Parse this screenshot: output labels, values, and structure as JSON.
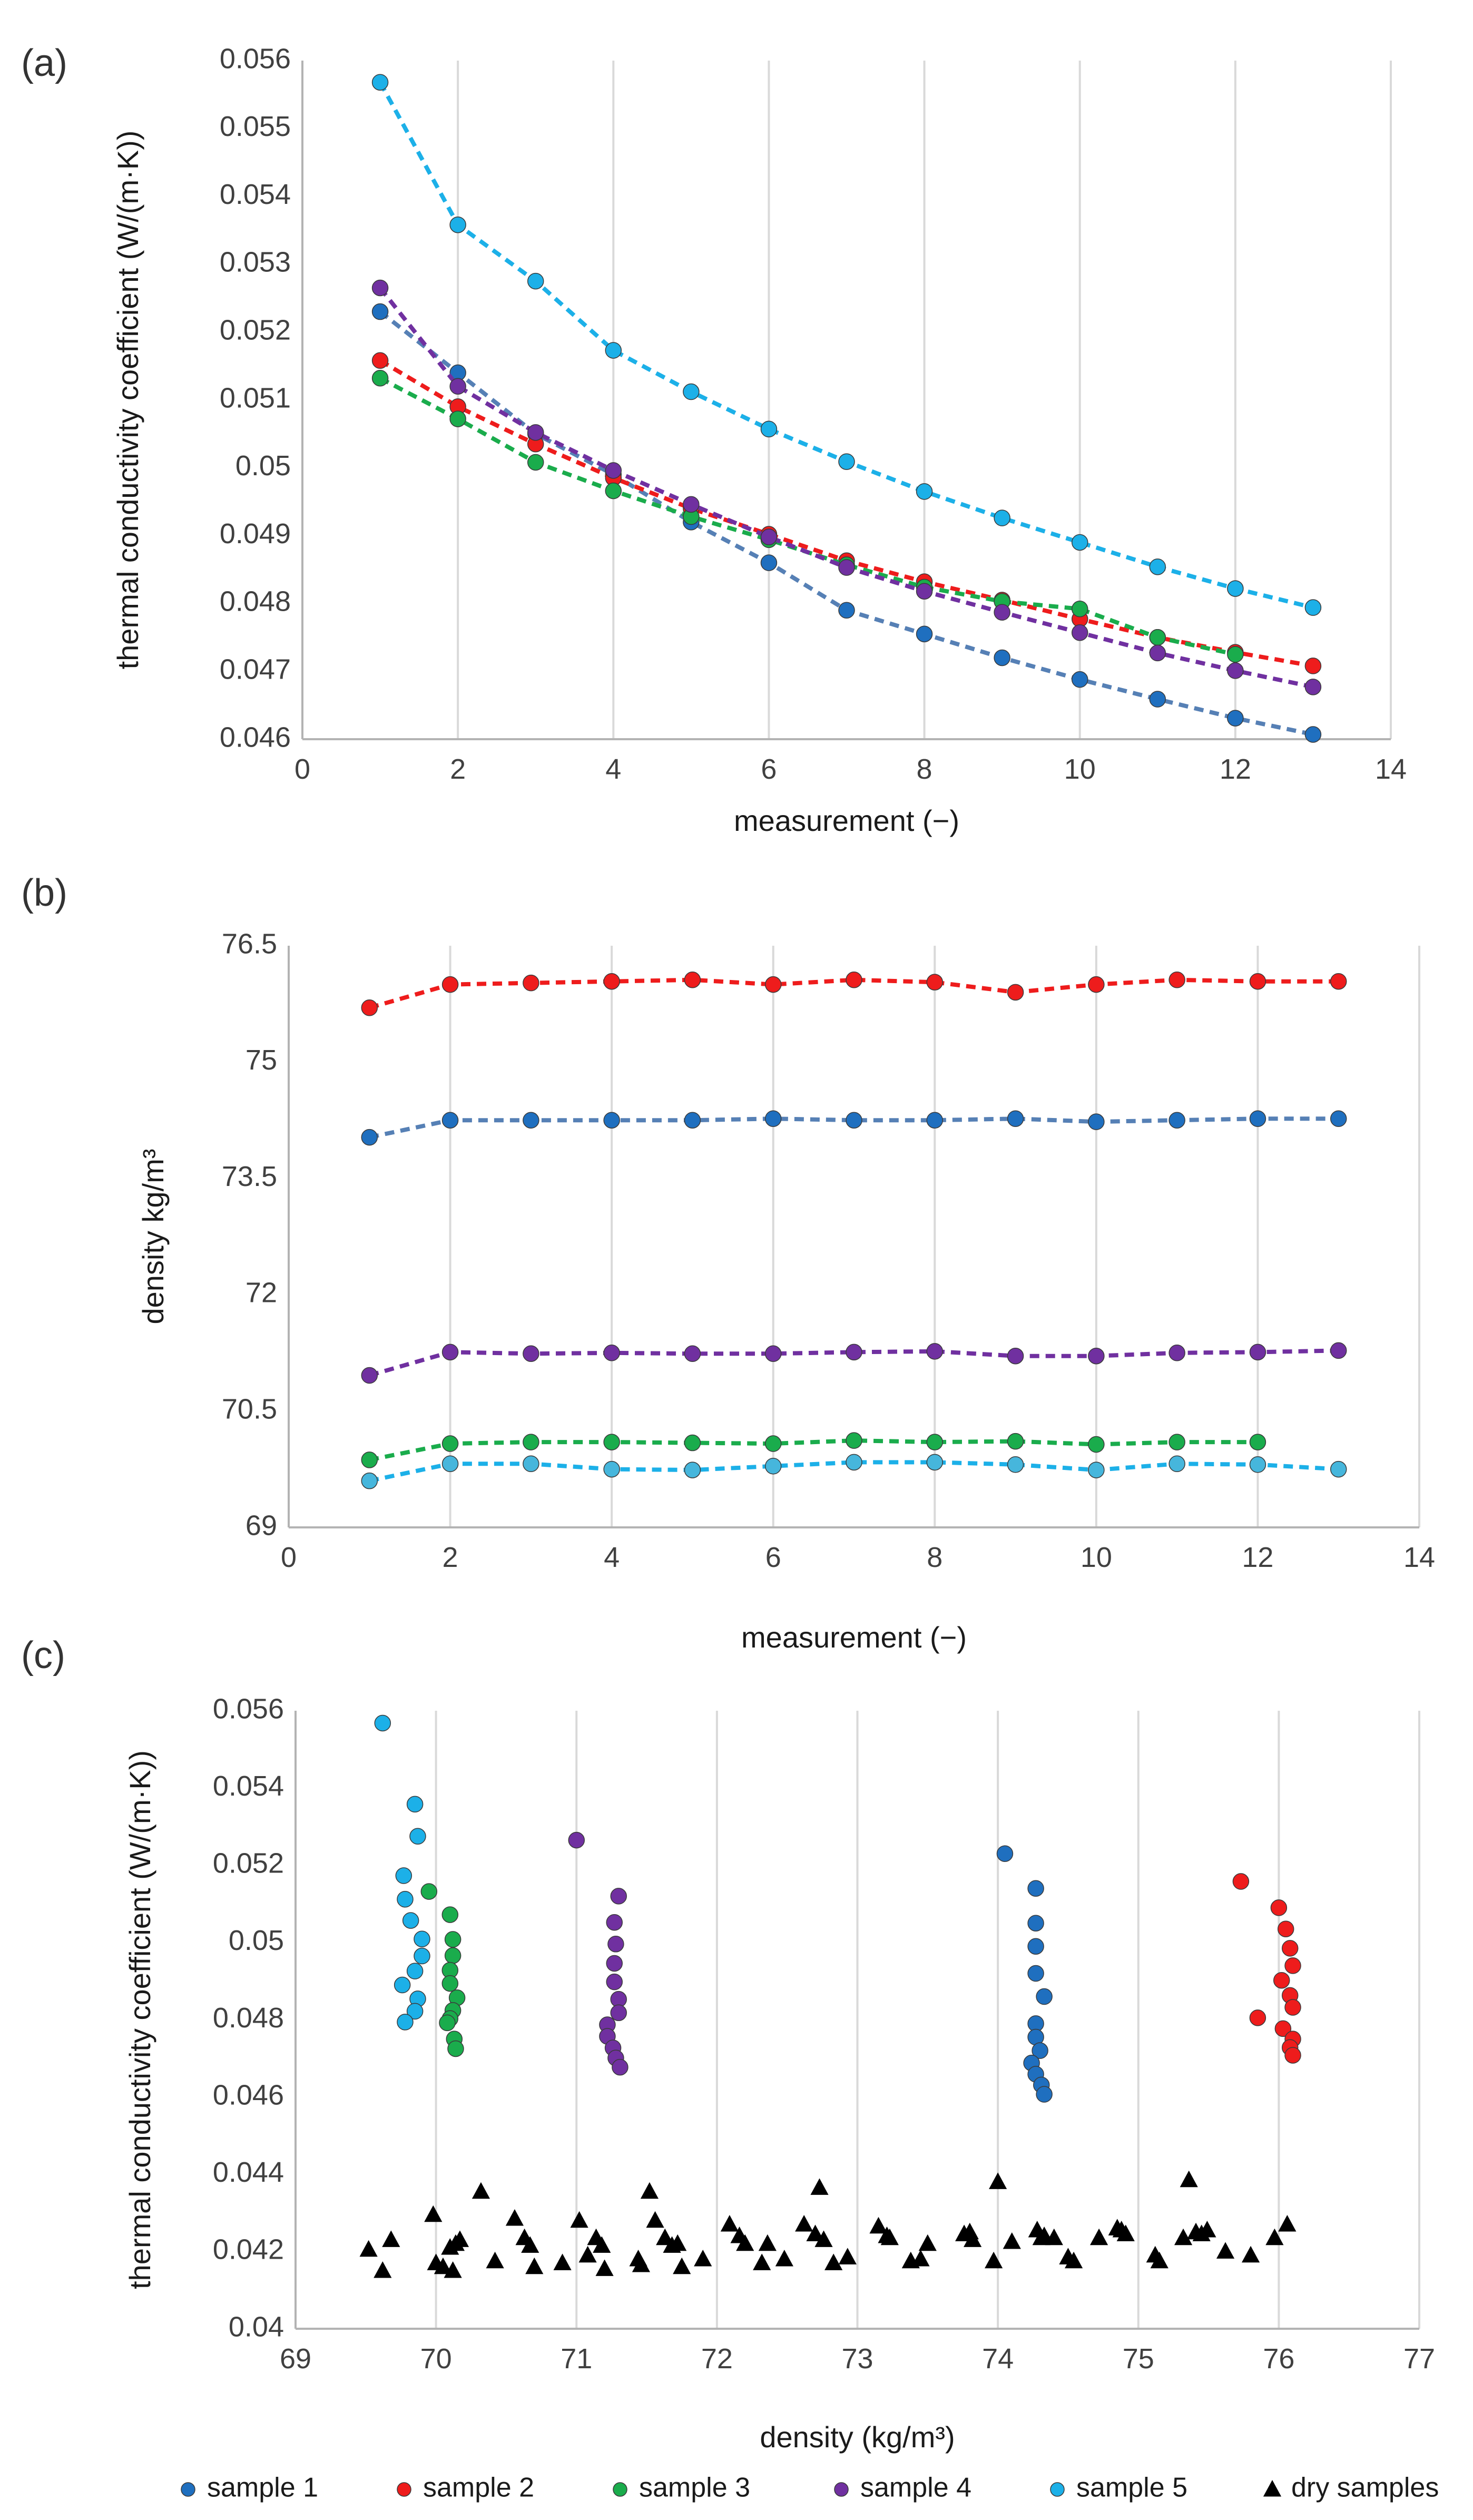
{
  "colors": {
    "sample1": "#1f6fbf",
    "sample2": "#ee1c1c",
    "sample3": "#1aac4c",
    "sample4": "#7030a0",
    "sample5": "#1cb0e8",
    "sample1_line": "#5680b5",
    "sample5_density_marker": "#46b6dc",
    "dry": "#000000",
    "grid": "#d9d9d9",
    "axis": "#b3b3b3"
  },
  "chart_data": [
    {
      "id": "a",
      "panel_label": "(a)",
      "type": "line",
      "xlabel": "measurement (−)",
      "ylabel": "thermal conductivity coefficient (W/(m·K))",
      "xlim": [
        0,
        14
      ],
      "ylim": [
        0.046,
        0.056
      ],
      "xticks": [
        "0",
        "2",
        "4",
        "6",
        "8",
        "10",
        "12",
        "14"
      ],
      "yticks": [
        "0.046",
        "0.047",
        "0.048",
        "0.049",
        "0.05",
        "0.051",
        "0.052",
        "0.053",
        "0.054",
        "0.055",
        "0.056"
      ],
      "grid": "vertical",
      "x": [
        1,
        2,
        3,
        4,
        5,
        6,
        7,
        8,
        9,
        10,
        11,
        12,
        13
      ],
      "series": [
        {
          "name": "sample 1",
          "values": [
            0.0523,
            0.0514,
            0.0505,
            0.0499,
            0.0492,
            0.0486,
            0.0479,
            0.04755,
            0.0472,
            0.04688,
            0.04659,
            0.04631,
            0.04607
          ]
        },
        {
          "name": "sample 2",
          "values": [
            0.05158,
            0.0509,
            0.05035,
            0.04985,
            0.0494,
            0.04902,
            0.04863,
            0.04832,
            0.04805,
            0.04777,
            0.0475,
            0.04728,
            0.04708
          ]
        },
        {
          "name": "sample 3",
          "values": [
            0.05132,
            0.05072,
            0.05008,
            0.04966,
            0.04928,
            0.04894,
            0.04857,
            0.04824,
            0.04803,
            0.04792,
            0.0475,
            0.04725,
            null
          ]
        },
        {
          "name": "sample 4",
          "values": [
            0.05265,
            0.0512,
            0.05052,
            0.04996,
            0.04946,
            0.04898,
            0.04853,
            0.04818,
            0.04787,
            0.04757,
            0.04727,
            0.04701,
            0.04677
          ]
        },
        {
          "name": "sample 5",
          "values": [
            0.05568,
            0.05358,
            0.05275,
            0.05173,
            0.05112,
            0.05057,
            0.05009,
            0.04965,
            0.04926,
            0.0489,
            0.04854,
            0.04822,
            0.04794
          ]
        }
      ]
    },
    {
      "id": "b",
      "panel_label": "(b)",
      "type": "line",
      "xlabel": "measurement (−)",
      "ylabel": "density kg/m³",
      "xlim": [
        0,
        14
      ],
      "ylim": [
        69,
        76.5
      ],
      "xticks": [
        "0",
        "2",
        "4",
        "6",
        "8",
        "10",
        "12",
        "14"
      ],
      "yticks": [
        "69",
        "70.5",
        "72",
        "73.5",
        "75",
        "76.5"
      ],
      "grid": "vertical",
      "x": [
        1,
        2,
        3,
        4,
        5,
        6,
        7,
        8,
        9,
        10,
        11,
        12,
        13
      ],
      "series": [
        {
          "name": "sample 1",
          "values": [
            74.03,
            74.25,
            74.25,
            74.25,
            74.25,
            74.27,
            74.25,
            74.25,
            74.27,
            74.23,
            74.25,
            74.27,
            74.27
          ]
        },
        {
          "name": "sample 2",
          "values": [
            75.7,
            76.0,
            76.02,
            76.04,
            76.06,
            76.0,
            76.06,
            76.03,
            75.9,
            76.0,
            76.06,
            76.04,
            76.04
          ]
        },
        {
          "name": "sample 3",
          "values": [
            69.87,
            70.08,
            70.1,
            70.1,
            70.09,
            70.08,
            70.12,
            70.1,
            70.11,
            70.07,
            70.1,
            70.1,
            null
          ]
        },
        {
          "name": "sample 4",
          "values": [
            70.96,
            71.26,
            71.24,
            71.25,
            71.24,
            71.24,
            71.26,
            71.27,
            71.21,
            71.21,
            71.25,
            71.26,
            71.28
          ]
        },
        {
          "name": "sample 5",
          "values": [
            69.6,
            69.82,
            69.82,
            69.75,
            69.74,
            69.79,
            69.84,
            69.84,
            69.81,
            69.74,
            69.82,
            69.81,
            69.75
          ]
        }
      ]
    },
    {
      "id": "c",
      "panel_label": "(c)",
      "type": "scatter",
      "xlabel": "density (kg/m³)",
      "ylabel": "thermal conductivity coefficient (W/(m·K))",
      "xlim": [
        69,
        77
      ],
      "ylim": [
        0.04,
        0.056
      ],
      "xticks": [
        "69",
        "70",
        "71",
        "72",
        "73",
        "74",
        "75",
        "76",
        "77"
      ],
      "yticks": [
        "0.04",
        "0.042",
        "0.044",
        "0.046",
        "0.048",
        "0.05",
        "0.052",
        "0.054",
        "0.056"
      ],
      "grid": "vertical",
      "legend": "bottom",
      "series": [
        {
          "name": "sample 1",
          "marker": "circle",
          "points": [
            [
              74.05,
              0.0523
            ],
            [
              74.27,
              0.0514
            ],
            [
              74.27,
              0.0505
            ],
            [
              74.27,
              0.0499
            ],
            [
              74.27,
              0.0492
            ],
            [
              74.33,
              0.0486
            ],
            [
              74.27,
              0.0479
            ],
            [
              74.27,
              0.04755
            ],
            [
              74.3,
              0.0472
            ],
            [
              74.24,
              0.04688
            ],
            [
              74.27,
              0.04659
            ],
            [
              74.31,
              0.04631
            ],
            [
              74.33,
              0.04607
            ]
          ]
        },
        {
          "name": "sample 2",
          "marker": "circle",
          "points": [
            [
              75.73,
              0.05158
            ],
            [
              76.0,
              0.0509
            ],
            [
              76.05,
              0.05035
            ],
            [
              76.08,
              0.04985
            ],
            [
              76.1,
              0.0494
            ],
            [
              76.02,
              0.04902
            ],
            [
              76.08,
              0.04863
            ],
            [
              76.1,
              0.04832
            ],
            [
              75.85,
              0.04805
            ],
            [
              76.03,
              0.04777
            ],
            [
              76.1,
              0.0475
            ],
            [
              76.08,
              0.04728
            ],
            [
              76.1,
              0.04708
            ]
          ]
        },
        {
          "name": "sample 3",
          "marker": "circle",
          "points": [
            [
              69.95,
              0.05132
            ],
            [
              70.1,
              0.05072
            ],
            [
              70.12,
              0.05008
            ],
            [
              70.12,
              0.04966
            ],
            [
              70.1,
              0.04928
            ],
            [
              70.1,
              0.04894
            ],
            [
              70.15,
              0.04857
            ],
            [
              70.12,
              0.04824
            ],
            [
              70.1,
              0.04803
            ],
            [
              70.08,
              0.04792
            ],
            [
              70.13,
              0.0475
            ],
            [
              70.14,
              0.04725
            ]
          ]
        },
        {
          "name": "sample 4",
          "marker": "circle",
          "points": [
            [
              71.0,
              0.05265
            ],
            [
              71.3,
              0.0512
            ],
            [
              71.27,
              0.05052
            ],
            [
              71.28,
              0.04996
            ],
            [
              71.27,
              0.04946
            ],
            [
              71.27,
              0.04898
            ],
            [
              71.3,
              0.04853
            ],
            [
              71.3,
              0.04818
            ],
            [
              71.22,
              0.04787
            ],
            [
              71.22,
              0.04757
            ],
            [
              71.26,
              0.04727
            ],
            [
              71.28,
              0.04701
            ],
            [
              71.31,
              0.04677
            ]
          ]
        },
        {
          "name": "sample 5",
          "marker": "circle",
          "points": [
            [
              69.62,
              0.05568
            ],
            [
              69.85,
              0.05358
            ],
            [
              69.87,
              0.05275
            ],
            [
              69.77,
              0.05173
            ],
            [
              69.78,
              0.05112
            ],
            [
              69.82,
              0.05057
            ],
            [
              69.9,
              0.05009
            ],
            [
              69.9,
              0.04965
            ],
            [
              69.85,
              0.04926
            ],
            [
              69.76,
              0.0489
            ],
            [
              69.87,
              0.04854
            ],
            [
              69.85,
              0.04822
            ],
            [
              69.78,
              0.04794
            ]
          ]
        },
        {
          "name": "dry samples",
          "marker": "triangle",
          "points": [
            [
              69.52,
              0.04205
            ],
            [
              69.62,
              0.0415
            ],
            [
              69.68,
              0.0423
            ],
            [
              69.98,
              0.04295
            ],
            [
              70.0,
              0.0417
            ],
            [
              70.05,
              0.0416
            ],
            [
              70.1,
              0.0421
            ],
            [
              70.12,
              0.0415
            ],
            [
              70.14,
              0.0422
            ],
            [
              70.17,
              0.0423
            ],
            [
              70.32,
              0.04355
            ],
            [
              70.42,
              0.04175
            ],
            [
              70.56,
              0.04285
            ],
            [
              70.63,
              0.04235
            ],
            [
              70.67,
              0.04215
            ],
            [
              70.7,
              0.0416
            ],
            [
              70.9,
              0.0417
            ],
            [
              71.02,
              0.0428
            ],
            [
              71.08,
              0.0419
            ],
            [
              71.14,
              0.04235
            ],
            [
              71.18,
              0.04215
            ],
            [
              71.2,
              0.04155
            ],
            [
              71.44,
              0.0418
            ],
            [
              71.46,
              0.04165
            ],
            [
              71.52,
              0.04355
            ],
            [
              71.56,
              0.0428
            ],
            [
              71.63,
              0.04235
            ],
            [
              71.68,
              0.04215
            ],
            [
              71.72,
              0.0422
            ],
            [
              71.75,
              0.0416
            ],
            [
              71.9,
              0.0418
            ],
            [
              72.09,
              0.0427
            ],
            [
              72.16,
              0.0424
            ],
            [
              72.2,
              0.0422
            ],
            [
              72.32,
              0.0417
            ],
            [
              72.36,
              0.0422
            ],
            [
              72.48,
              0.0418
            ],
            [
              72.62,
              0.0427
            ],
            [
              72.7,
              0.04245
            ],
            [
              72.73,
              0.04365
            ],
            [
              72.76,
              0.0423
            ],
            [
              72.83,
              0.0417
            ],
            [
              72.93,
              0.04185
            ],
            [
              73.15,
              0.04265
            ],
            [
              73.21,
              0.0424
            ],
            [
              73.23,
              0.04235
            ],
            [
              73.38,
              0.04175
            ],
            [
              73.45,
              0.0418
            ],
            [
              73.5,
              0.0422
            ],
            [
              73.76,
              0.04245
            ],
            [
              73.8,
              0.0425
            ],
            [
              73.82,
              0.0423
            ],
            [
              73.97,
              0.04175
            ],
            [
              74.0,
              0.0438
            ],
            [
              74.1,
              0.04225
            ],
            [
              74.28,
              0.04255
            ],
            [
              74.31,
              0.04235
            ],
            [
              74.33,
              0.0424
            ],
            [
              74.4,
              0.04235
            ],
            [
              74.5,
              0.04185
            ],
            [
              74.54,
              0.04175
            ],
            [
              74.72,
              0.04235
            ],
            [
              74.85,
              0.0426
            ],
            [
              74.88,
              0.04255
            ],
            [
              74.91,
              0.04245
            ],
            [
              75.12,
              0.0419
            ],
            [
              75.15,
              0.04175
            ],
            [
              75.32,
              0.04235
            ],
            [
              75.36,
              0.04385
            ],
            [
              75.41,
              0.0425
            ],
            [
              75.45,
              0.04245
            ],
            [
              75.49,
              0.04255
            ],
            [
              75.62,
              0.042
            ],
            [
              75.8,
              0.0419
            ],
            [
              75.97,
              0.04235
            ],
            [
              76.06,
              0.0427
            ]
          ]
        }
      ]
    }
  ]
}
